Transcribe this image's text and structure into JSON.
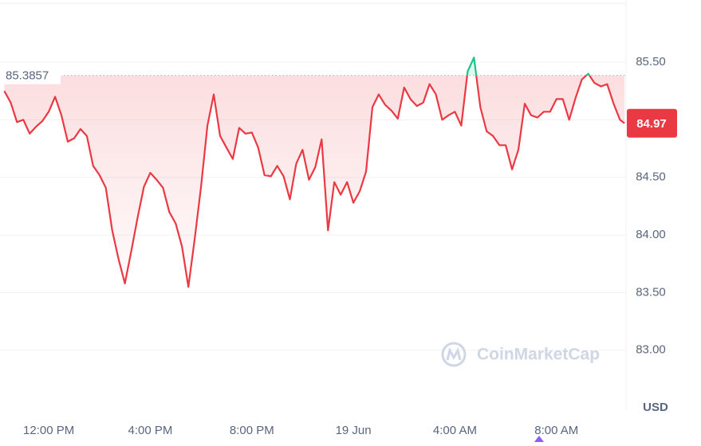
{
  "chart_data": {
    "type": "line",
    "x": [
      10.25,
      10.5,
      10.75,
      11,
      11.25,
      11.5,
      11.75,
      12,
      12.25,
      12.5,
      12.75,
      13,
      13.25,
      13.5,
      13.75,
      14,
      14.25,
      14.5,
      14.75,
      15,
      15.25,
      15.5,
      15.75,
      16,
      16.25,
      16.5,
      16.75,
      17,
      17.25,
      17.5,
      17.75,
      18,
      18.25,
      18.5,
      18.75,
      19,
      19.25,
      19.5,
      19.75,
      20,
      20.25,
      20.5,
      20.75,
      21,
      21.25,
      21.5,
      21.75,
      22,
      22.25,
      22.5,
      22.75,
      23,
      23.25,
      23.5,
      23.75,
      24,
      24.25,
      24.5,
      24.75,
      25,
      25.25,
      25.5,
      25.75,
      26,
      26.25,
      26.5,
      26.75,
      27,
      27.25,
      27.5,
      27.75,
      28,
      28.25,
      28.5,
      28.75,
      29,
      29.25,
      29.5,
      29.75,
      30,
      30.25,
      30.5,
      30.75,
      31,
      31.25,
      31.5,
      31.75,
      32,
      32.25,
      32.5,
      32.75,
      33,
      33.25,
      33.5,
      33.75,
      34,
      34.25,
      34.5,
      34.68
    ],
    "series": [
      {
        "name": "USD",
        "color": "#ea3943",
        "up_color": "#16c784",
        "values": [
          85.25,
          85.15,
          84.98,
          85.0,
          84.88,
          84.94,
          84.99,
          85.07,
          85.2,
          85.04,
          84.81,
          84.84,
          84.92,
          84.86,
          84.6,
          84.52,
          84.41,
          84.04,
          83.79,
          83.58,
          83.86,
          84.15,
          84.42,
          84.54,
          84.48,
          84.41,
          84.2,
          84.1,
          83.9,
          83.55,
          83.97,
          84.42,
          84.95,
          85.22,
          84.86,
          84.76,
          84.66,
          84.93,
          84.88,
          84.89,
          84.76,
          84.52,
          84.51,
          84.6,
          84.51,
          84.31,
          84.62,
          84.74,
          84.48,
          84.59,
          84.83,
          84.04,
          84.46,
          84.35,
          84.46,
          84.28,
          84.38,
          84.55,
          85.11,
          85.22,
          85.13,
          85.08,
          85.01,
          85.28,
          85.18,
          85.12,
          85.15,
          85.31,
          85.22,
          85.0,
          85.04,
          85.07,
          84.95,
          85.42,
          85.54,
          85.11,
          84.9,
          84.86,
          84.78,
          84.78,
          84.57,
          84.74,
          85.14,
          85.04,
          85.02,
          85.07,
          85.07,
          85.18,
          85.18,
          85.0,
          85.19,
          85.35,
          85.4,
          85.32,
          85.29,
          85.31,
          85.14,
          85.0,
          84.97
        ]
      }
    ],
    "reference": 85.3857,
    "current": 84.97,
    "y_axis_label": "USD",
    "watermark": "CoinMarketCap",
    "xlim": [
      10.08,
      34.74
    ],
    "xticks": [
      {
        "value": 12,
        "label": "12:00 PM"
      },
      {
        "value": 16,
        "label": "4:00 PM"
      },
      {
        "value": 20,
        "label": "8:00 PM"
      },
      {
        "value": 24,
        "label": "19 Jun"
      },
      {
        "value": 28,
        "label": "4:00 AM"
      },
      {
        "value": 32,
        "label": "8:00 AM"
      }
    ],
    "ylim": [
      82.48,
      86.04
    ],
    "yticks": [
      {
        "value": 83,
        "label": "83.00"
      },
      {
        "value": 83.5,
        "label": "83.50"
      },
      {
        "value": 84,
        "label": "84.00"
      },
      {
        "value": 84.5,
        "label": "84.50"
      },
      {
        "value": 85,
        "label": "85.00"
      },
      {
        "value": 85.5,
        "label": "85.50"
      }
    ],
    "grid": true
  }
}
